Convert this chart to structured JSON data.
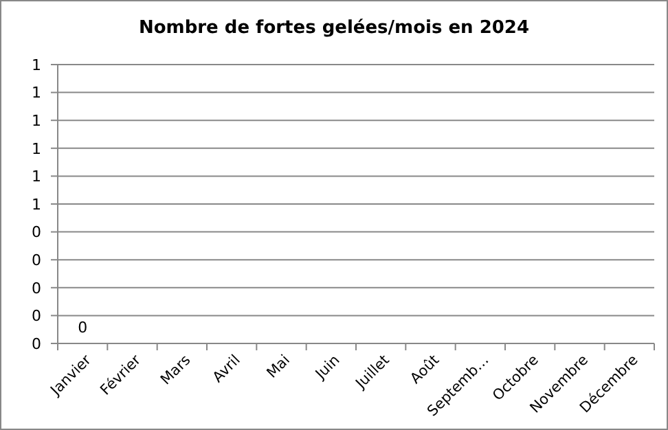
{
  "chart_data": {
    "type": "bar",
    "title": "Nombre de fortes gelées/mois en 2024",
    "categories": [
      "Janvier",
      "Février",
      "Mars",
      "Avril",
      "Mai",
      "Juin",
      "Juillet",
      "Août",
      "Septemb…",
      "Octobre",
      "Novembre",
      "Décembre"
    ],
    "values": [
      0,
      null,
      null,
      null,
      null,
      null,
      null,
      null,
      null,
      null,
      null,
      null
    ],
    "value_labels": [
      "0",
      null,
      null,
      null,
      null,
      null,
      null,
      null,
      null,
      null,
      null,
      null
    ],
    "ylim": [
      0,
      1
    ],
    "yticks": [
      {
        "value": 0,
        "label": "0"
      },
      {
        "value": 0.1,
        "label": "0"
      },
      {
        "value": 0.2,
        "label": "0"
      },
      {
        "value": 0.3,
        "label": "0"
      },
      {
        "value": 0.4,
        "label": "0"
      },
      {
        "value": 0.5,
        "label": "1"
      },
      {
        "value": 0.6,
        "label": "1"
      },
      {
        "value": 0.7,
        "label": "1"
      },
      {
        "value": 0.8,
        "label": "1"
      },
      {
        "value": 0.9,
        "label": "1"
      },
      {
        "value": 1,
        "label": "1"
      }
    ],
    "grid": "y"
  }
}
